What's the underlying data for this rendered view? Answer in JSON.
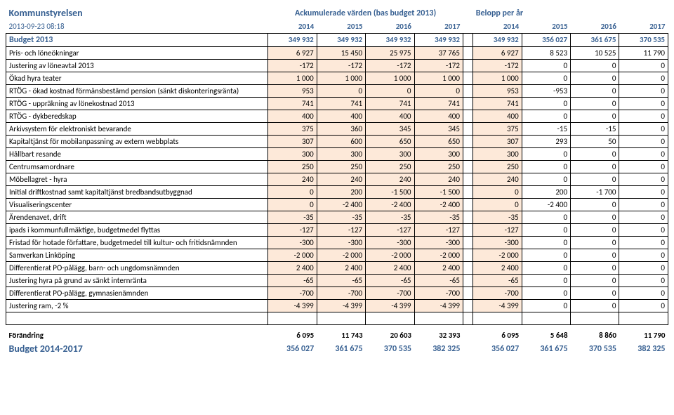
{
  "header": {
    "title": "Kommunstyrelsen",
    "subtitle_left": "Ackumulerade värden (bas budget 2013)",
    "subtitle_right": "Belopp per år",
    "timestamp": "2013-09-23 08:18",
    "years": [
      "2014",
      "2015",
      "2016",
      "2017",
      "2014",
      "2015",
      "2016",
      "2017"
    ]
  },
  "budget2013": {
    "label": "Budget 2013",
    "vals": [
      "349 932",
      "349 932",
      "349 932",
      "349 932",
      "349 932",
      "356 027",
      "361 675",
      "370 535"
    ]
  },
  "rows": [
    {
      "label": "Pris- och löneökningar",
      "v": [
        "6 927",
        "15 450",
        "25 975",
        "37 765",
        "6 927",
        "8 523",
        "10 525",
        "11 790"
      ]
    },
    {
      "label": "Justering av löneavtal 2013",
      "v": [
        "-172",
        "-172",
        "-172",
        "-172",
        "-172",
        "0",
        "0",
        "0"
      ]
    },
    {
      "label": "Ökad hyra teater",
      "v": [
        "1 000",
        "1 000",
        "1 000",
        "1 000",
        "1 000",
        "0",
        "0",
        "0"
      ]
    },
    {
      "label": "RTÖG - ökad kostnad förmånsbestämd pension (sänkt diskonteringsränta)",
      "v": [
        "953",
        "0",
        "0",
        "0",
        "953",
        "-953",
        "0",
        "0"
      ]
    },
    {
      "label": "RTÖG - uppräkning av lönekostnad 2013",
      "v": [
        "741",
        "741",
        "741",
        "741",
        "741",
        "0",
        "0",
        "0"
      ]
    },
    {
      "label": "RTÖG - dykberedskap",
      "v": [
        "400",
        "400",
        "400",
        "400",
        "400",
        "0",
        "0",
        "0"
      ]
    },
    {
      "label": "Arkivsystem för elektroniskt bevarande",
      "v": [
        "375",
        "360",
        "345",
        "345",
        "375",
        "-15",
        "-15",
        "0"
      ]
    },
    {
      "label": "Kapitaltjänst för mobilanpassning av extern webbplats",
      "v": [
        "307",
        "600",
        "650",
        "650",
        "307",
        "293",
        "50",
        "0"
      ]
    },
    {
      "label": "Hållbart resande",
      "v": [
        "300",
        "300",
        "300",
        "300",
        "300",
        "0",
        "0",
        "0"
      ]
    },
    {
      "label": "Centrumsamordnare",
      "v": [
        "250",
        "250",
        "250",
        "250",
        "250",
        "0",
        "0",
        "0"
      ]
    },
    {
      "label": "Möbellagret - hyra",
      "v": [
        "240",
        "240",
        "240",
        "240",
        "240",
        "0",
        "0",
        "0"
      ]
    },
    {
      "label": "Initial driftkostnad samt kapitaltjänst bredbandsutbyggnad",
      "v": [
        "0",
        "200",
        "-1 500",
        "-1 500",
        "0",
        "200",
        "-1 700",
        "0"
      ]
    },
    {
      "label": "Visualiseringscenter",
      "v": [
        "0",
        "-2 400",
        "-2 400",
        "-2 400",
        "0",
        "-2 400",
        "0",
        "0"
      ]
    },
    {
      "label": "Ärendenavet, drift",
      "v": [
        "-35",
        "-35",
        "-35",
        "-35",
        "-35",
        "0",
        "0",
        "0"
      ]
    },
    {
      "label": "ipads i kommunfullmäktige, budgetmedel flyttas",
      "v": [
        "-127",
        "-127",
        "-127",
        "-127",
        "-127",
        "0",
        "0",
        "0"
      ]
    },
    {
      "label": "Fristad för hotade författare, budgetmedel till kultur- och fritidsnämnden",
      "v": [
        "-300",
        "-300",
        "-300",
        "-300",
        "-300",
        "0",
        "0",
        "0"
      ]
    },
    {
      "label": "Samverkan Linköping",
      "v": [
        "-2 000",
        "-2 000",
        "-2 000",
        "-2 000",
        "-2 000",
        "0",
        "0",
        "0"
      ]
    },
    {
      "label": "Differentierat PO-pålägg, barn- och ungdomsnämnden",
      "v": [
        "2 400",
        "2 400",
        "2 400",
        "2 400",
        "2 400",
        "0",
        "0",
        "0"
      ]
    },
    {
      "label": "Justering hyra på grund av sänkt internränta",
      "v": [
        "-65",
        "-65",
        "-65",
        "-65",
        "-65",
        "0",
        "0",
        "0"
      ]
    },
    {
      "label": "Differentierat PO-pålägg, gymnasienämnden",
      "v": [
        "-700",
        "-700",
        "-700",
        "-700",
        "-700",
        "0",
        "0",
        "0"
      ]
    },
    {
      "label": "Justering ram, -2 %",
      "v": [
        "-4 399",
        "-4 399",
        "-4 399",
        "-4 399",
        "-4 399",
        "0",
        "0",
        "0"
      ]
    }
  ],
  "forandring": {
    "label": "Förändring",
    "v": [
      "6 095",
      "11 743",
      "20 603",
      "32 393",
      "6 095",
      "5 648",
      "8 860",
      "11 790"
    ]
  },
  "budget1417": {
    "label": "Budget 2014-2017",
    "v": [
      "356 027",
      "361 675",
      "370 535",
      "382 325",
      "356 027",
      "361 675",
      "370 535",
      "382 325"
    ]
  }
}
